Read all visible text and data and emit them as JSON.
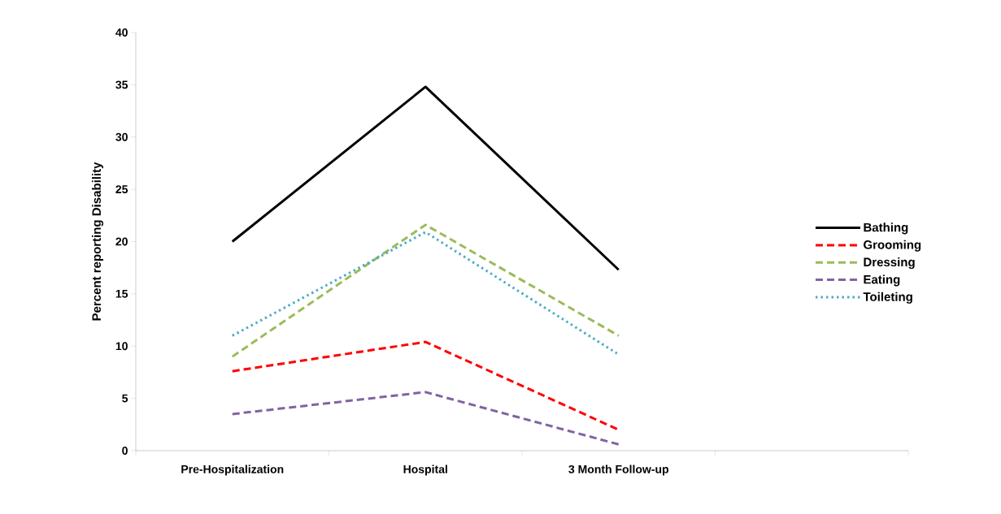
{
  "chart_data": {
    "type": "line",
    "ylabel": "Percent reporting Disability",
    "categories": [
      "Pre-Hospitalization",
      "Hospital",
      "3 Month Follow-up",
      null
    ],
    "series": [
      {
        "name": "Bathing",
        "color": "#000000",
        "line_style": "solid",
        "values": [
          20,
          34.8,
          17.3,
          null
        ]
      },
      {
        "name": "Grooming",
        "color": "#ff0000",
        "line_style": "dashed",
        "values": [
          7.6,
          10.4,
          2.0,
          null
        ]
      },
      {
        "name": "Dressing",
        "color": "#9bbb59",
        "line_style": "dashed",
        "values": [
          9.0,
          21.6,
          11.0,
          null
        ]
      },
      {
        "name": "Eating",
        "color": "#8064a2",
        "line_style": "dashed",
        "values": [
          3.5,
          5.6,
          0.6,
          null
        ]
      },
      {
        "name": "Toileting",
        "color": "#4bacc6",
        "line_style": "dotted",
        "values": [
          11.0,
          20.9,
          9.2,
          null
        ]
      }
    ],
    "ylim": [
      0,
      40
    ],
    "yticks": [
      0,
      5,
      10,
      15,
      20,
      25,
      30,
      35,
      40
    ],
    "grid": false,
    "legend": "right",
    "marker": "none"
  }
}
